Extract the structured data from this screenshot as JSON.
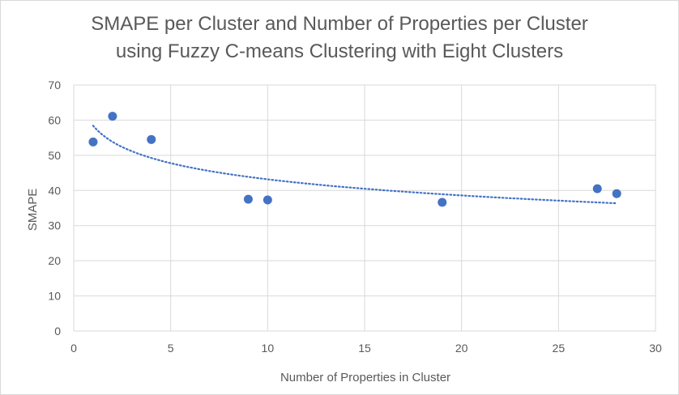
{
  "chart_data": {
    "type": "scatter",
    "title": "SMAPE per Cluster and Number of Properties per Cluster",
    "subtitle": "using Fuzzy C-means Clustering with Eight Clusters",
    "xlabel": "Number of Properties in Cluster",
    "ylabel": "SMAPE",
    "xlim": [
      0,
      30
    ],
    "ylim": [
      0,
      70
    ],
    "xticks": [
      "0",
      "5",
      "10",
      "15",
      "20",
      "25",
      "30"
    ],
    "yticks": [
      "0",
      "10",
      "20",
      "30",
      "40",
      "50",
      "60",
      "70"
    ],
    "grid": true,
    "legend": "none",
    "series": [
      {
        "x": [
          1,
          2,
          4,
          9,
          10,
          19,
          27,
          28
        ],
        "y": [
          53.8,
          61.1,
          54.5,
          37.5,
          37.3,
          36.6,
          40.5,
          39.1
        ],
        "color": "#4472c4"
      }
    ],
    "trendline": {
      "type": "logarithmic",
      "style": "dotted",
      "color": "#4472c4",
      "x_range": [
        1,
        28
      ]
    }
  }
}
